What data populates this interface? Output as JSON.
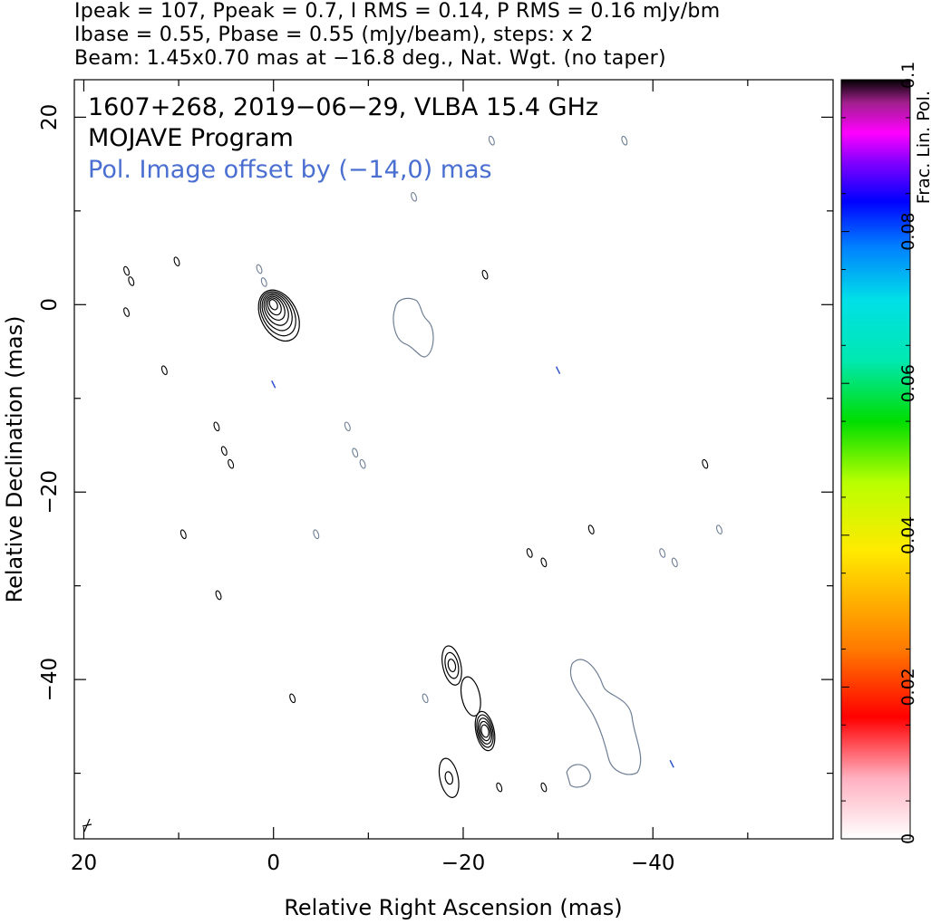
{
  "header": {
    "line1": "Ipeak = 107, Ppeak = 0.7, I RMS = 0.14, P RMS = 0.16 mJy/bm",
    "line2": "Ibase = 0.55, Pbase = 0.55 (mJy/beam), steps: x 2",
    "line3": "Beam: 1.45x0.70 mas at −16.8 deg., Nat. Wgt. (no taper)"
  },
  "annotations": {
    "source_line": "1607+268, 2019−06−29, VLBA 15.4 GHz",
    "program": "MOJAVE Program",
    "pol_offset": "Pol. Image offset by (−14,0) mas"
  },
  "colors": {
    "stokes_i_contour": "#000000",
    "pol_contour": "#6f7f95",
    "evpa_vector": "#3355cc",
    "annotation_blue": "#4a6fd0"
  },
  "chart_data": {
    "type": "contour",
    "xlabel": "Relative Right Ascension (mas)",
    "ylabel": "Relative Declination (mas)",
    "xlim": [
      21,
      -59
    ],
    "ylim": [
      -57,
      24
    ],
    "x_ticks": [
      20,
      0,
      -20,
      -40
    ],
    "x_tick_labels": [
      "20",
      "0",
      "−20",
      "−40"
    ],
    "y_ticks": [
      20,
      0,
      -20,
      -40
    ],
    "y_tick_labels": [
      "20",
      "0",
      "−20",
      "−40"
    ],
    "colorbar": {
      "label": "Frac. Lin. Pol.",
      "range": [
        0,
        0.1
      ],
      "ticks": [
        0,
        0.02,
        0.04,
        0.06,
        0.08,
        0.1
      ],
      "tick_labels": [
        "0",
        "0.02",
        "0.04",
        "0.06",
        "0.08",
        "0.1"
      ]
    },
    "core": {
      "x": 0,
      "y": 0,
      "peak_mJy_per_beam": 107,
      "levels": 7
    },
    "southern_lobe": [
      {
        "x": -18.8,
        "y": -38.5,
        "levels": 3
      },
      {
        "x": -20.8,
        "y": -41.8,
        "levels": 1
      },
      {
        "x": -22.3,
        "y": -45.5,
        "levels": 5
      },
      {
        "x": -18.5,
        "y": -50.5,
        "levels": 2
      }
    ],
    "pol_regions": [
      {
        "name": "core pol",
        "x": -14.5,
        "y": -1.3
      },
      {
        "name": "lobe pol",
        "x": -35.5,
        "y": -44.5
      }
    ]
  }
}
